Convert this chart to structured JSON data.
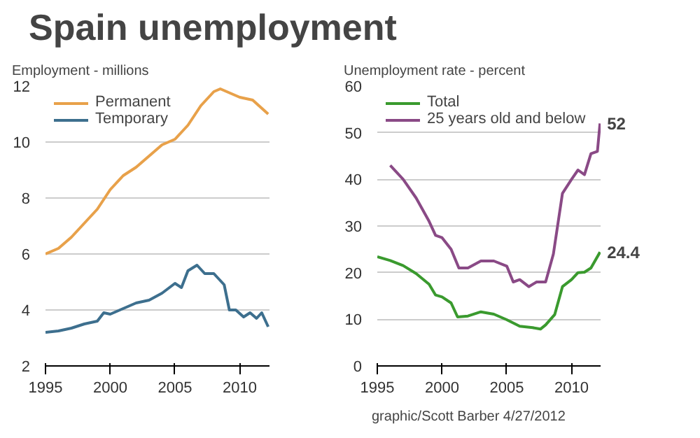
{
  "chart_data": [
    {
      "type": "line",
      "title": "Spain unemployment",
      "ylabel": "Employment - millions",
      "xlim": [
        1995,
        2012.3
      ],
      "xticks": [
        1995,
        2000,
        2005,
        2010
      ],
      "ylim": [
        2,
        12
      ],
      "yticks": [
        2,
        4,
        6,
        8,
        10,
        12
      ],
      "grid": "y",
      "legend": "top left",
      "series": [
        {
          "name": "Permanent",
          "color": "#e8a14a",
          "x": [
            1995,
            1996,
            1997,
            1998,
            1999,
            2000,
            2001,
            2002,
            2003,
            2004,
            2005,
            2006,
            2007,
            2008,
            2008.5,
            2009,
            2010,
            2011,
            2012.2
          ],
          "values": [
            6.0,
            6.2,
            6.6,
            7.1,
            7.6,
            8.3,
            8.8,
            9.1,
            9.5,
            9.9,
            10.1,
            10.6,
            11.3,
            11.8,
            11.9,
            11.8,
            11.6,
            11.5,
            11.0
          ]
        },
        {
          "name": "Temporary",
          "color": "#3d6f8e",
          "x": [
            1995,
            1996,
            1997,
            1998,
            1999,
            1999.5,
            2000,
            2001,
            2002,
            2003,
            2004,
            2005,
            2005.5,
            2006,
            2006.7,
            2007.3,
            2008,
            2008.8,
            2009.2,
            2009.7,
            2010.3,
            2010.8,
            2011.3,
            2011.7,
            2012.2
          ],
          "values": [
            3.2,
            3.25,
            3.35,
            3.5,
            3.6,
            3.9,
            3.85,
            4.05,
            4.25,
            4.35,
            4.6,
            4.95,
            4.8,
            5.4,
            5.6,
            5.3,
            5.3,
            4.9,
            4.0,
            4.0,
            3.75,
            3.9,
            3.7,
            3.9,
            3.4
          ]
        }
      ]
    },
    {
      "type": "line",
      "ylabel": "Unemployment rate - percent",
      "xlim": [
        1995,
        2012.3
      ],
      "xticks": [
        1995,
        2000,
        2005,
        2010
      ],
      "ylim": [
        0,
        60
      ],
      "yticks": [
        0,
        10,
        20,
        30,
        40,
        50,
        60
      ],
      "grid": "y",
      "legend": "top left",
      "annotations": [
        {
          "text": "52",
          "x": 2012.2,
          "y": 52
        },
        {
          "text": "24.4",
          "x": 2012.2,
          "y": 24.4
        },
        "graphic/Scott Barber 4/27/2012"
      ],
      "series": [
        {
          "name": "Total",
          "color": "#3a9a2e",
          "x": [
            1995,
            1996,
            1997,
            1998,
            1999,
            1999.5,
            2000,
            2000.7,
            2001.2,
            2002,
            2003,
            2004,
            2005,
            2006,
            2007,
            2007.6,
            2008,
            2008.7,
            2009.3,
            2010,
            2010.5,
            2011,
            2011.5,
            2012.2
          ],
          "values": [
            23.4,
            22.6,
            21.5,
            19.8,
            17.5,
            15.2,
            14.8,
            13.5,
            10.5,
            10.7,
            11.6,
            11.1,
            9.9,
            8.5,
            8.2,
            7.9,
            8.8,
            11,
            17,
            18.5,
            20,
            20.1,
            21,
            24.4
          ]
        },
        {
          "name": "25 years old and below",
          "color": "#8a4a86",
          "x": [
            1996,
            1997,
            1998,
            1999,
            1999.5,
            2000,
            2000.7,
            2001.3,
            2002,
            2003,
            2004,
            2005,
            2005.5,
            2006,
            2006.7,
            2007.3,
            2008,
            2008.6,
            2009.3,
            2010,
            2010.5,
            2011,
            2011.5,
            2012,
            2012.2
          ],
          "values": [
            43,
            40,
            36,
            31,
            28,
            27.5,
            25,
            21,
            21,
            22.5,
            22.5,
            21.4,
            18,
            18.5,
            17,
            18,
            18,
            24,
            37,
            40,
            42,
            41,
            45.5,
            46,
            52
          ]
        }
      ]
    }
  ]
}
